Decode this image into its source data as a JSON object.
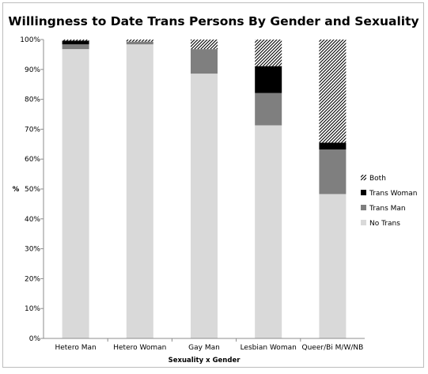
{
  "chart_data": {
    "type": "bar",
    "stacked": true,
    "title": "Willingness to Date Trans Persons By Gender and Sexuality",
    "xlabel": "Sexuality x Gender",
    "ylabel": "%",
    "ylim": [
      0,
      100
    ],
    "ytick_labels": [
      "0%",
      "10%",
      "20%",
      "30%",
      "40%",
      "50%",
      "60%",
      "70%",
      "80%",
      "90%",
      "100%"
    ],
    "grid": false,
    "legend_position": "right",
    "categories": [
      "Hetero Man",
      "Hetero Woman",
      "Gay Man",
      "Lesbian Woman",
      "Queer/Bi M/W/NB"
    ],
    "series": [
      {
        "name": "No Trans",
        "color": "#d9d9d9",
        "pattern": "solid",
        "values": [
          96.8,
          98.4,
          88.6,
          71.3,
          48.3
        ]
      },
      {
        "name": "Trans Man",
        "color": "#7f7f7f",
        "pattern": "solid",
        "values": [
          1.6,
          0.9,
          8.2,
          10.8,
          14.9
        ]
      },
      {
        "name": "Trans Woman",
        "color": "#000000",
        "pattern": "solid",
        "values": [
          1.2,
          0.0,
          0.0,
          9.0,
          2.3
        ]
      },
      {
        "name": "Both",
        "color": "#000000",
        "pattern": "diagonal-hatch",
        "values": [
          0.4,
          0.7,
          3.2,
          8.9,
          34.5
        ]
      }
    ],
    "legend_order": [
      "Both",
      "Trans Woman",
      "Trans Man",
      "No Trans"
    ]
  }
}
